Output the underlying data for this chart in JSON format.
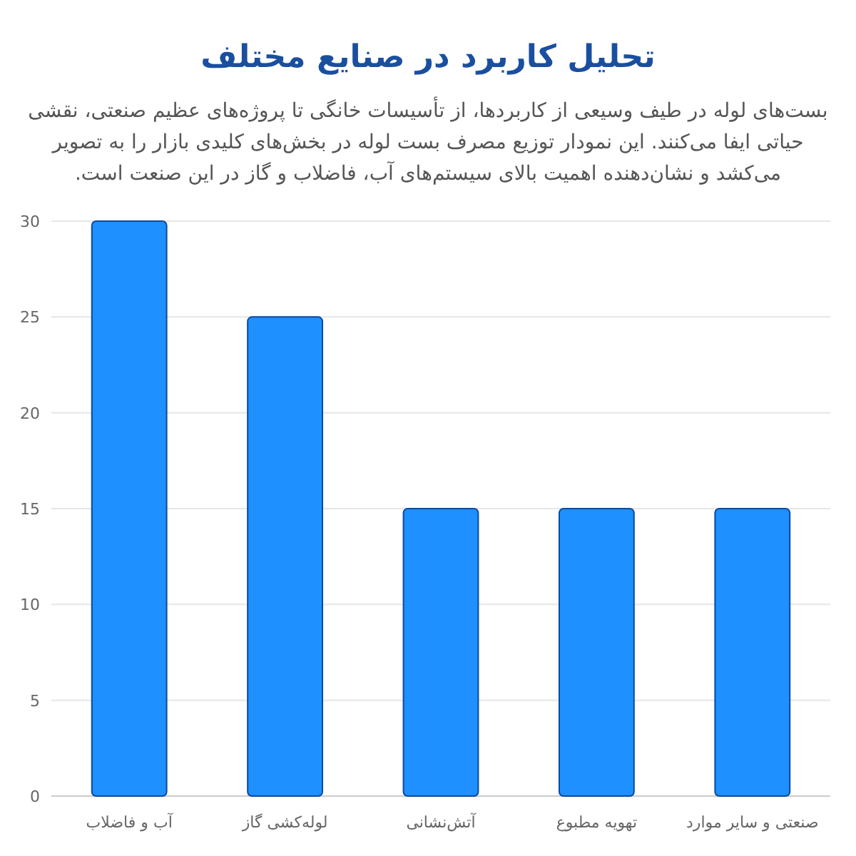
{
  "chart_data": {
    "type": "bar",
    "title": "تحلیل کاربرد در صنایع مختلف",
    "subtitle": "بست‌های لوله در طیف وسیعی از کاربردها، از تأسیسات خانگی تا پروژه‌های عظیم صنعتی، نقشی حیاتی ایفا می‌کنند. این نمودار توزیع مصرف بست لوله در بخش‌های کلیدی بازار را به تصویر می‌کشد و نشان‌دهنده اهمیت بالای سیستم‌های آب، فاضلاب و گاز در این صنعت است.",
    "categories": [
      "آب و فاضلاب",
      "لوله‌کشی گاز",
      "آتش‌نشانی",
      "تهویه مطبوع",
      "صنعتی و سایر موارد"
    ],
    "values": [
      30,
      25,
      15,
      15,
      15
    ],
    "color": "#1e90ff",
    "ylim": [
      0,
      30
    ],
    "yticks": [
      0,
      5,
      10,
      15,
      20,
      25,
      30
    ],
    "grid": "y"
  }
}
